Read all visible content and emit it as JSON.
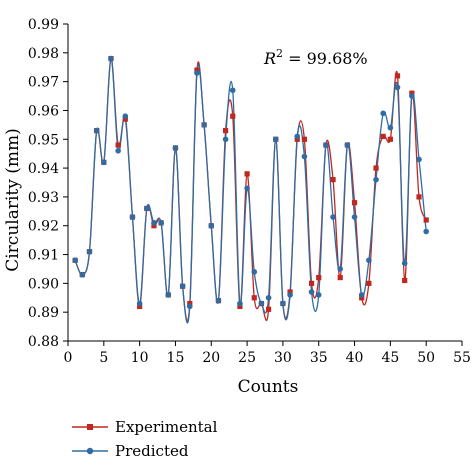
{
  "chart_data": {
    "type": "line",
    "xlabel": "Counts",
    "ylabel": "Circularity (mm)",
    "annotation": {
      "r2_symbol": "R",
      "r2_power": "2",
      "r2_text": " = 99.68%"
    },
    "xlim": [
      0,
      55
    ],
    "ylim": [
      0.88,
      0.99
    ],
    "xticks": [
      "0",
      "5",
      "10",
      "15",
      "20",
      "25",
      "30",
      "35",
      "40",
      "45",
      "50",
      "55"
    ],
    "yticks": [
      "0.88",
      "0.89",
      "0.90",
      "0.91",
      "0.92",
      "0.93",
      "0.94",
      "0.95",
      "0.96",
      "0.97",
      "0.98",
      "0.99"
    ],
    "legend_position": "bottom-left",
    "x": [
      1,
      2,
      3,
      4,
      5,
      6,
      7,
      8,
      9,
      10,
      11,
      12,
      13,
      14,
      15,
      16,
      17,
      18,
      19,
      20,
      21,
      22,
      23,
      24,
      25,
      26,
      27,
      28,
      29,
      30,
      31,
      32,
      33,
      34,
      35,
      36,
      37,
      38,
      39,
      40,
      41,
      42,
      43,
      44,
      45,
      46,
      47,
      48,
      49,
      50
    ],
    "series": [
      {
        "name": "Experimental",
        "color": "#c0271f",
        "marker": "square",
        "values": [
          0.908,
          0.903,
          0.911,
          0.953,
          0.942,
          0.978,
          0.948,
          0.957,
          0.923,
          0.892,
          0.926,
          0.92,
          0.921,
          0.896,
          0.947,
          0.899,
          0.893,
          0.974,
          0.955,
          0.92,
          0.894,
          0.953,
          0.958,
          0.892,
          0.938,
          0.895,
          0.893,
          0.891,
          0.95,
          0.893,
          0.897,
          0.95,
          0.95,
          0.9,
          0.902,
          0.948,
          0.936,
          0.902,
          0.948,
          0.928,
          0.895,
          0.9,
          0.94,
          0.951,
          0.95,
          0.972,
          0.901,
          0.966,
          0.93,
          0.922
        ]
      },
      {
        "name": "Predicted",
        "color": "#2e6da4",
        "marker": "circle",
        "values": [
          0.908,
          0.903,
          0.911,
          0.953,
          0.942,
          0.978,
          0.946,
          0.958,
          0.923,
          0.893,
          0.926,
          0.921,
          0.921,
          0.896,
          0.947,
          0.899,
          0.892,
          0.973,
          0.955,
          0.92,
          0.894,
          0.95,
          0.967,
          0.893,
          0.933,
          0.904,
          0.893,
          0.895,
          0.95,
          0.893,
          0.896,
          0.951,
          0.944,
          0.897,
          0.896,
          0.948,
          0.923,
          0.905,
          0.948,
          0.923,
          0.896,
          0.908,
          0.936,
          0.959,
          0.954,
          0.968,
          0.907,
          0.965,
          0.943,
          0.918
        ]
      }
    ]
  }
}
